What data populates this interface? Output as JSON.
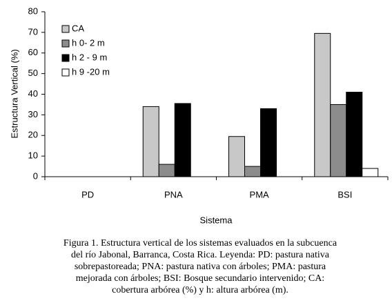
{
  "chart_data": {
    "type": "bar",
    "y_axis_label": "Estructura Vertical (%)",
    "x_axis_label": "Sistema",
    "categories": [
      "PD",
      "PNA",
      "PMA",
      "BSI"
    ],
    "series": [
      {
        "name": "CA",
        "color": "#c8c8c8",
        "values": [
          0,
          34,
          19.5,
          69.5
        ]
      },
      {
        "name": "h  0- 2 m",
        "color": "#8c8c8c",
        "values": [
          0,
          6,
          5,
          35
        ]
      },
      {
        "name": "h  2 - 9 m",
        "color": "#000000",
        "values": [
          0,
          35.5,
          33,
          41
        ]
      },
      {
        "name": "h  9 -20 m",
        "color": "#ffffff",
        "values": [
          0,
          0,
          0,
          4
        ]
      }
    ],
    "ylim": [
      0,
      80
    ],
    "yticks": [
      0,
      10,
      20,
      30,
      40,
      50,
      60,
      70,
      80
    ],
    "grid": false,
    "legend": "upper-left",
    "caption": [
      "Figura 1. Estructura vertical de los sistemas evaluados en la subcuenca",
      "del río Jabonal, Barranca, Costa Rica. Leyenda: PD: pastura nativa",
      "sobrepastoreada; PNA: pastura nativa con árboles; PMA: pastura",
      "mejorada con árboles; BSI: Bosque secundario intervenido; CA:",
      "cobertura arbórea (%) y h: altura arbórea (m)."
    ]
  }
}
